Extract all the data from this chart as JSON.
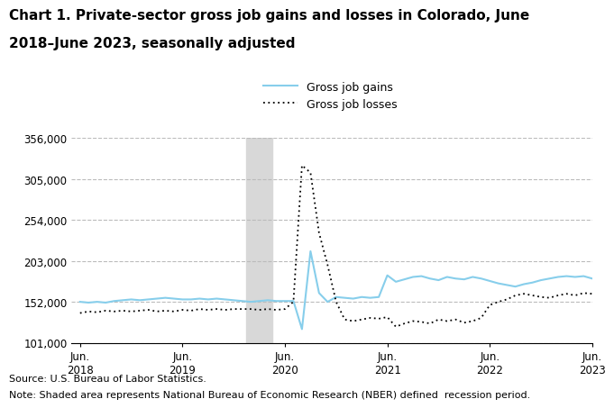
{
  "title_line1": "Chart 1. Private-sector gross job gains and losses in Colorado, June",
  "title_line2": "2018–June 2023, seasonally adjusted",
  "title_fontsize": 11,
  "source_text": "Source: U.S. Bureau of Labor Statistics.",
  "note_text": "Note: Shaded area represents National Bureau of Economic Research (NBER) defined  recession period.",
  "ylim": [
    101000,
    356000
  ],
  "yticks": [
    101000,
    152000,
    203000,
    254000,
    305000,
    356000
  ],
  "ytick_labels": [
    "101,000",
    "152,000",
    "203,000",
    "254,000",
    "305,000",
    "356,000"
  ],
  "gains_color": "#87CEEB",
  "losses_color": "#000000",
  "background_color": "#ffffff",
  "grid_color": "#bbbbbb",
  "shaded_color": "#d8d8d8",
  "legend_gains": "Gross job gains",
  "legend_losses": "Gross job losses",
  "x_labels": [
    "Jun.\n2018",
    "Jun.\n2019",
    "Jun.\n2020",
    "Jun.\n2021",
    "Jun.\n2022",
    "Jun.\n2023"
  ],
  "x_tick_positions": [
    0,
    12,
    24,
    36,
    48,
    60
  ],
  "recession_start": 20,
  "recession_end": 22,
  "gross_job_gains": [
    152000,
    151000,
    152000,
    151000,
    153000,
    154000,
    155000,
    154000,
    155000,
    156000,
    157000,
    156000,
    155000,
    155000,
    156000,
    155000,
    156000,
    155000,
    154000,
    153000,
    152000,
    153000,
    154000,
    153000,
    153000,
    153000,
    118000,
    215000,
    163000,
    152000,
    158000,
    157000,
    156000,
    158000,
    157000,
    158000,
    185000,
    177000,
    180000,
    183000,
    184000,
    181000,
    179000,
    183000,
    181000,
    180000,
    183000,
    181000,
    178000,
    175000,
    173000,
    171000,
    174000,
    176000,
    179000,
    181000,
    183000,
    184000,
    183000,
    184000,
    181000
  ],
  "gross_job_losses": [
    138000,
    140000,
    139000,
    141000,
    140000,
    141000,
    140000,
    141000,
    142000,
    140000,
    141000,
    140000,
    142000,
    141000,
    143000,
    142000,
    143000,
    142000,
    143000,
    143000,
    143000,
    142000,
    143000,
    142000,
    143000,
    152000,
    322000,
    313000,
    238000,
    198000,
    152000,
    130000,
    128000,
    130000,
    132000,
    131000,
    133000,
    121000,
    125000,
    128000,
    127000,
    125000,
    130000,
    128000,
    130000,
    126000,
    128000,
    132000,
    148000,
    152000,
    155000,
    160000,
    162000,
    160000,
    158000,
    157000,
    160000,
    162000,
    160000,
    163000,
    162000
  ]
}
